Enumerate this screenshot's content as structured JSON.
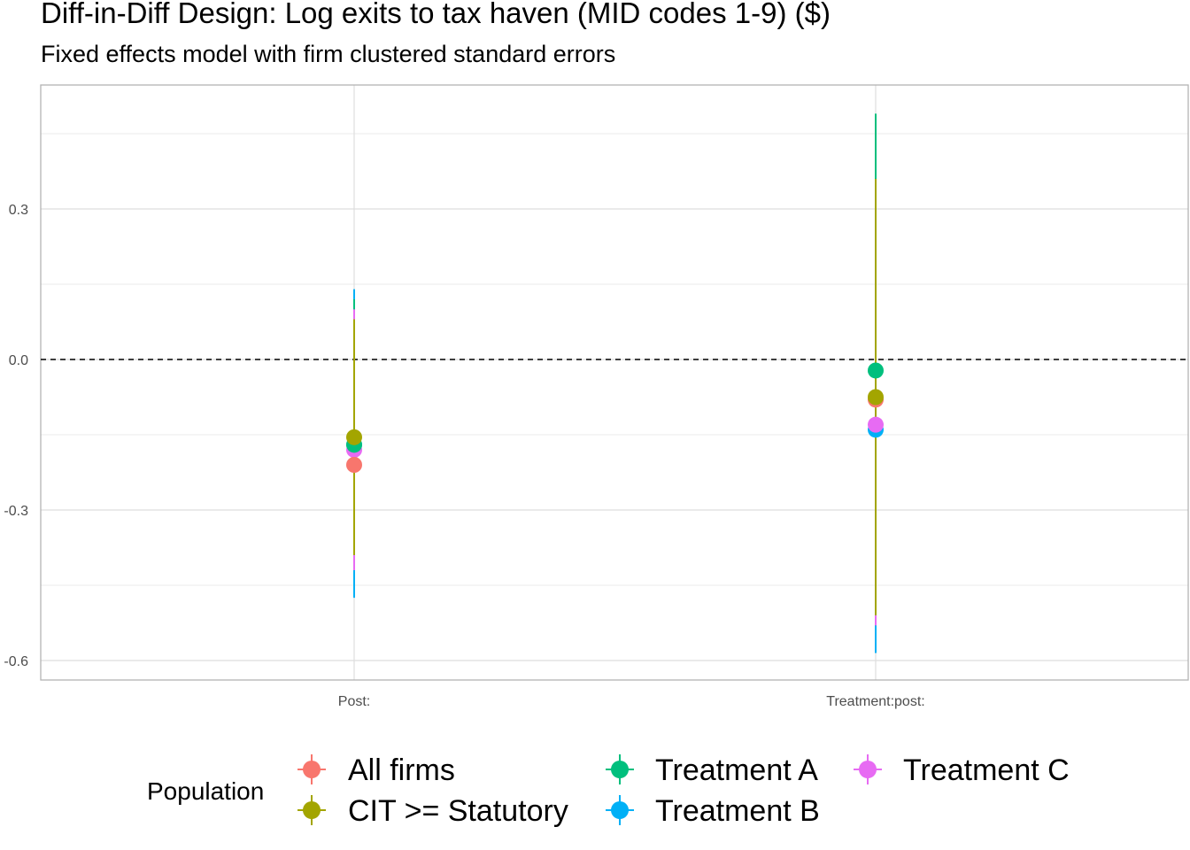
{
  "title": "Diff-in-Diff Design: Log exits to tax haven (MID codes 1-9)  ($)",
  "subtitle": "Fixed effects model with firm clustered standard errors",
  "chart_data": {
    "type": "scatter",
    "title": "Diff-in-Diff Design: Log exits to tax haven (MID codes 1-9)  ($)",
    "subtitle": "Fixed effects model with firm clustered standard errors",
    "xlabel": "",
    "ylabel": "",
    "categories": [
      "Post:",
      "Treatment:post:"
    ],
    "y_ticks": [
      -0.6,
      -0.3,
      0.0,
      0.3
    ],
    "y_tick_labels": [
      "-0.6",
      "-0.3",
      "0.0",
      "0.3"
    ],
    "ylim": [
      -0.64,
      0.54
    ],
    "reference_line": {
      "y": 0,
      "style": "dashed"
    },
    "grid": true,
    "legend": {
      "title": "Population",
      "position": "bottom"
    },
    "series": [
      {
        "name": "All firms",
        "color": "#F8766D",
        "estimates": [
          -0.21,
          -0.08
        ],
        "lower": [
          -0.38,
          -0.51
        ],
        "upper": [
          0.08,
          0.36
        ]
      },
      {
        "name": "CIT >= Statutory",
        "color": "#A3A500",
        "estimates": [
          -0.155,
          -0.075
        ],
        "lower": [
          -0.39,
          -0.51
        ],
        "upper": [
          0.08,
          0.36
        ]
      },
      {
        "name": "Treatment A",
        "color": "#00BF7D",
        "estimates": [
          -0.17,
          -0.022
        ],
        "lower": [
          -0.42,
          -0.53
        ],
        "upper": [
          0.12,
          0.49
        ]
      },
      {
        "name": "Treatment B",
        "color": "#00B0F6",
        "estimates": [
          -0.17,
          -0.14
        ],
        "lower": [
          -0.475,
          -0.585
        ],
        "upper": [
          0.14,
          0.36
        ]
      },
      {
        "name": "Treatment C",
        "color": "#E76BF3",
        "estimates": [
          -0.18,
          -0.13
        ],
        "lower": [
          -0.42,
          -0.53
        ],
        "upper": [
          0.1,
          0.36
        ]
      }
    ]
  }
}
